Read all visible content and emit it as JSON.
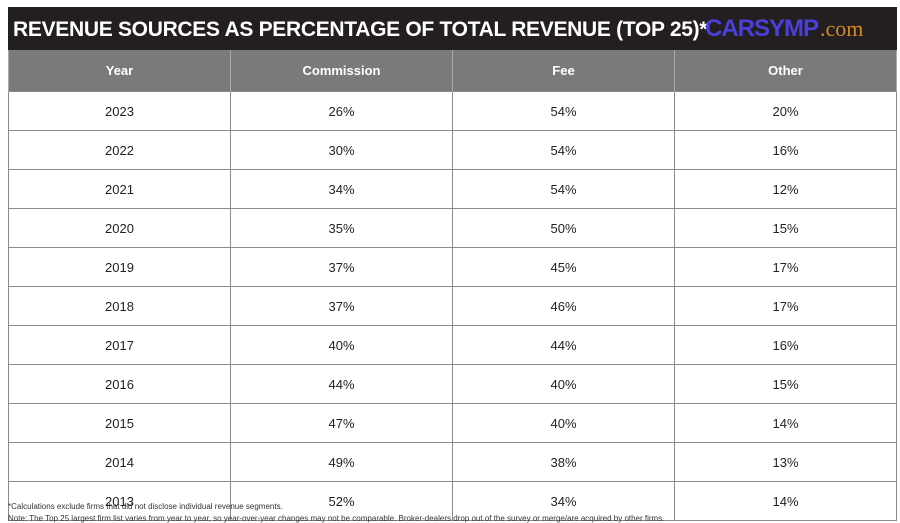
{
  "chart_data": {
    "type": "table",
    "title": "REVENUE SOURCES AS PERCENTAGE OF TOTAL REVENUE (TOP 25)*",
    "columns": [
      "Year",
      "Commission",
      "Fee",
      "Other"
    ],
    "rows": [
      [
        "2023",
        "26%",
        "54%",
        "20%"
      ],
      [
        "2022",
        "30%",
        "54%",
        "16%"
      ],
      [
        "2021",
        "34%",
        "54%",
        "12%"
      ],
      [
        "2020",
        "35%",
        "50%",
        "15%"
      ],
      [
        "2019",
        "37%",
        "45%",
        "17%"
      ],
      [
        "2018",
        "37%",
        "46%",
        "17%"
      ],
      [
        "2017",
        "40%",
        "44%",
        "16%"
      ],
      [
        "2016",
        "44%",
        "40%",
        "15%"
      ],
      [
        "2015",
        "47%",
        "40%",
        "14%"
      ],
      [
        "2014",
        "49%",
        "38%",
        "13%"
      ],
      [
        "2013",
        "52%",
        "34%",
        "14%"
      ]
    ],
    "footnotes": [
      "*Calculations exclude firms that did not disclose individual revenue segments.",
      "Note: The Top 25 largest firm list varies from year to year, so year-over-year changes may not be comparable. Broker-dealers drop out of the survey or merge/are acquired by other firms."
    ]
  },
  "watermark": {
    "text": "CARSYMP",
    "suffix": ".com"
  }
}
